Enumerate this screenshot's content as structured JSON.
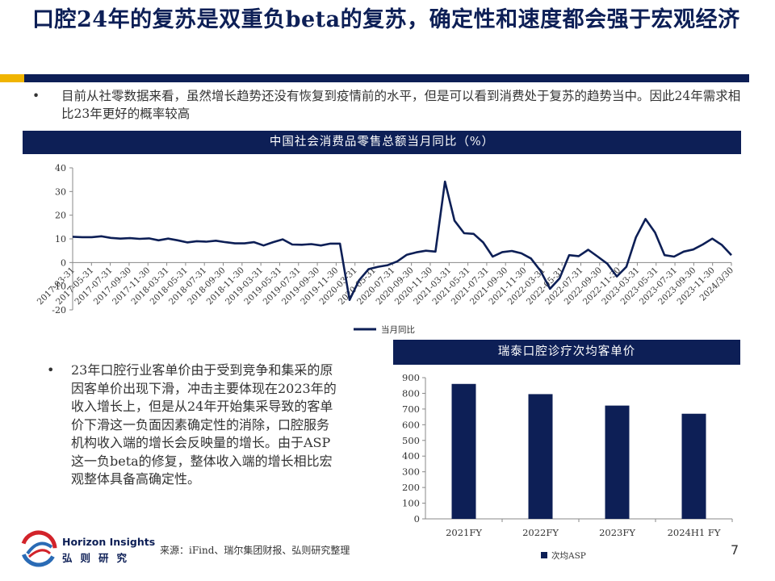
{
  "slide": {
    "title": "口腔24年的复苏是双重负beta的复苏，确定性和速度都会强于宏观经济",
    "bullet1": "目前从社零数据来看，虽然增长趋势还没有恢复到疫情前的水平，但是可以看到消费处于复苏的趋势当中。因此24年需求相比23年更好的概率较高",
    "bullet2": "23年口腔行业客单价由于受到竞争和集采的原因客单价出现下滑，冲击主要体现在2023年的收入增长上，但是从24年开始集采导致的客单价下滑这一负面因素确定性的消除，口腔服务机构收入端的增长会反映量的增长。由于ASP这一负beta的修复，整体收入端的增长相比宏观整体具备高确定性。",
    "bullet_mark": "•",
    "source": "来源：iFind、瑞尔集团财报、弘则研究整理",
    "page_number": "7",
    "logo_en": "Horizon Insights",
    "logo_cn": "弘则研究"
  },
  "colors": {
    "navy": "#0d1f56",
    "gold": "#f0b400",
    "red": "#d2232a",
    "blue": "#2a6bb5"
  },
  "chart_data": [
    {
      "type": "line",
      "title": "中国社会消费品零售总额当月同比（%）",
      "ylim": [
        -20,
        40
      ],
      "yticks": [
        -20,
        -10,
        0,
        10,
        20,
        30,
        40
      ],
      "xticklabels": [
        "2017-03-31",
        "2017-05-31",
        "2017-07-31",
        "2017-09-30",
        "2017-11-30",
        "2018-03-31",
        "2018-05-31",
        "2018-07-31",
        "2018-09-30",
        "2018-11-30",
        "2019-03-31",
        "2019-05-31",
        "2019-07-31",
        "2019-09-30",
        "2019-11-30",
        "2020-03-31",
        "2020-05-31",
        "2020-07-31",
        "2020-09-30",
        "2020-11-30",
        "2021-03-31",
        "2021-05-31",
        "2021-07-31",
        "2021-09-30",
        "2021-11-30",
        "2022-03-31",
        "2022-05-31",
        "2022-07-31",
        "2022-09-30",
        "2022-11-30",
        "2023-03-31",
        "2023-05-31",
        "2023-07-31",
        "2023-09-30",
        "2023-11-30",
        "2024/3/30"
      ],
      "series": [
        {
          "name": "当月同比",
          "values": [
            10.9,
            10.7,
            10.7,
            11.1,
            10.4,
            10.1,
            10.3,
            10.0,
            10.2,
            9.4,
            10.1,
            9.4,
            8.5,
            9.0,
            8.8,
            9.2,
            8.6,
            8.1,
            8.1,
            8.6,
            7.2,
            8.6,
            9.8,
            7.6,
            7.5,
            7.8,
            7.2,
            8.0,
            8.0,
            -15.8,
            -7.5,
            -2.8,
            -1.8,
            -1.1,
            0.5,
            3.3,
            4.3,
            5.0,
            4.6,
            34.2,
            17.7,
            12.4,
            12.1,
            8.5,
            2.5,
            4.4,
            4.9,
            3.9,
            1.7,
            -3.5,
            -11.1,
            -6.7,
            3.1,
            2.7,
            5.4,
            2.5,
            -0.5,
            -5.9,
            -1.8,
            10.6,
            18.4,
            12.7,
            3.1,
            2.5,
            4.6,
            5.5,
            7.6,
            10.1,
            7.4,
            3.1
          ]
        }
      ],
      "legend": "bottom"
    },
    {
      "type": "bar",
      "title": "瑞泰口腔诊疗次均客单价",
      "categories": [
        "2021FY",
        "2022FY",
        "2023FY",
        "2024H1 FY"
      ],
      "series": [
        {
          "name": "次均ASP",
          "values": [
            860,
            795,
            722,
            670
          ]
        }
      ],
      "ylim": [
        0,
        900
      ],
      "yticks": [
        0,
        100,
        200,
        300,
        400,
        500,
        600,
        700,
        800,
        900
      ],
      "legend": "bottom"
    }
  ]
}
